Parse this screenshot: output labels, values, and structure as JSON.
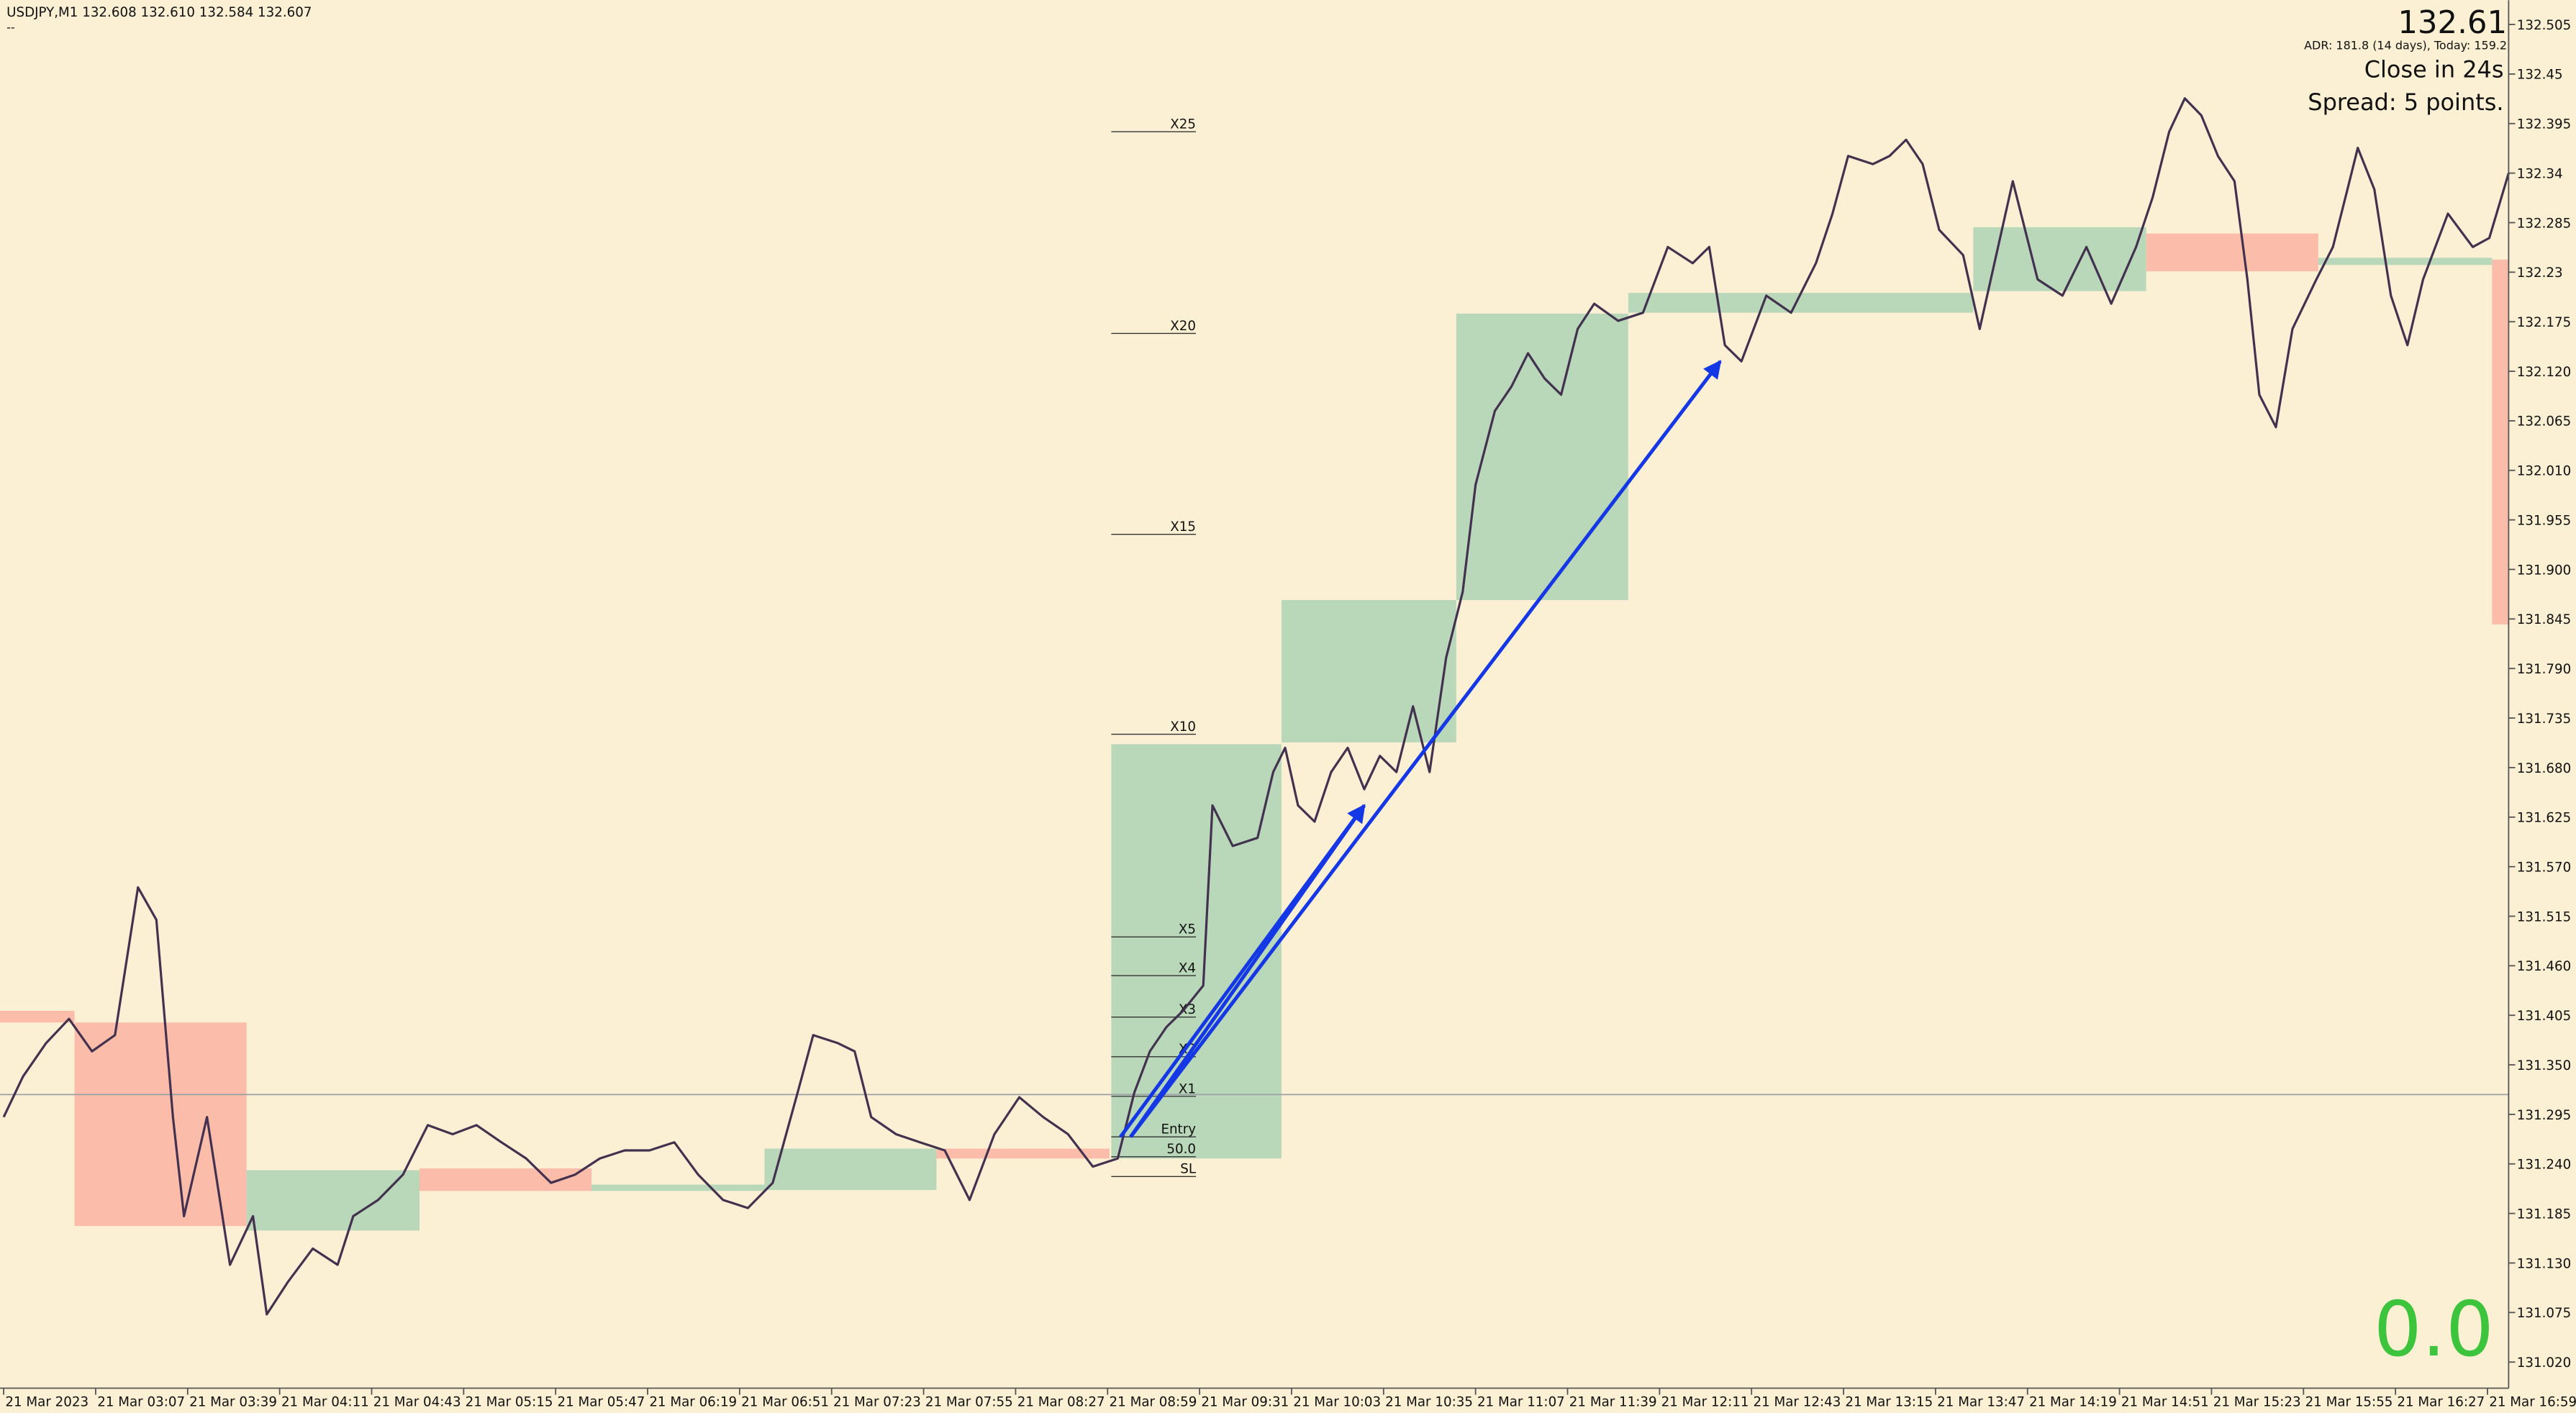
{
  "info": {
    "symbol_line": "USDJPY,M1  132.608 132.610 132.584 132.607",
    "sub_line": "--",
    "price": "132.61",
    "adr": "ADR: 181.8 (14 days), Today: 159.2",
    "close_in": "Close in 24s",
    "spread": "Spread: 5 points.",
    "counter": "0.0"
  },
  "chart_data": {
    "type": "line",
    "xlim": [
      -0.04,
      27.23
    ],
    "ylim": [
      130.991,
      132.532
    ],
    "xticks": [
      {
        "value": 0,
        "label": "21 Mar 2023"
      },
      {
        "value": 1,
        "label": "21 Mar 03:07"
      },
      {
        "value": 2,
        "label": "21 Mar 03:39"
      },
      {
        "value": 3,
        "label": "21 Mar 04:11"
      },
      {
        "value": 4,
        "label": "21 Mar 04:43"
      },
      {
        "value": 5,
        "label": "21 Mar 05:15"
      },
      {
        "value": 6,
        "label": "21 Mar 05:47"
      },
      {
        "value": 7,
        "label": "21 Mar 06:19"
      },
      {
        "value": 8,
        "label": "21 Mar 06:51"
      },
      {
        "value": 9,
        "label": "21 Mar 07:23"
      },
      {
        "value": 10,
        "label": "21 Mar 07:55"
      },
      {
        "value": 11,
        "label": "21 Mar 08:27"
      },
      {
        "value": 12,
        "label": "21 Mar 08:59"
      },
      {
        "value": 13,
        "label": "21 Mar 09:31"
      },
      {
        "value": 14,
        "label": "21 Mar 10:03"
      },
      {
        "value": 15,
        "label": "21 Mar 10:35"
      },
      {
        "value": 16,
        "label": "21 Mar 11:07"
      },
      {
        "value": 17,
        "label": "21 Mar 11:39"
      },
      {
        "value": 18,
        "label": "21 Mar 12:11"
      },
      {
        "value": 19,
        "label": "21 Mar 12:43"
      },
      {
        "value": 20,
        "label": "21 Mar 13:15"
      },
      {
        "value": 21,
        "label": "21 Mar 13:47"
      },
      {
        "value": 22,
        "label": "21 Mar 14:19"
      },
      {
        "value": 23,
        "label": "21 Mar 14:51"
      },
      {
        "value": 24,
        "label": "21 Mar 15:23"
      },
      {
        "value": 25,
        "label": "21 Mar 15:55"
      },
      {
        "value": 26,
        "label": "21 Mar 16:27"
      },
      {
        "value": 27,
        "label": "21 Mar 16:59"
      }
    ],
    "yticks": [
      132.505,
      132.45,
      132.395,
      132.34,
      132.285,
      132.23,
      132.175,
      {
        "value": 132.12,
        "label": "132.120"
      },
      132.065,
      {
        "value": 132.01,
        "label": "132.010"
      },
      131.955,
      {
        "value": 131.9,
        "label": "131.900"
      },
      131.845,
      {
        "value": 131.79,
        "label": "131.790"
      },
      131.735,
      {
        "value": 131.68,
        "label": "131.680"
      },
      131.625,
      {
        "value": 131.57,
        "label": "131.570"
      },
      131.515,
      {
        "value": 131.46,
        "label": "131.460"
      },
      131.405,
      {
        "value": 131.35,
        "label": "131.350"
      },
      131.295,
      {
        "value": 131.24,
        "label": "131.240"
      },
      131.185,
      {
        "value": 131.13,
        "label": "131.130"
      },
      131.075,
      {
        "value": 131.02,
        "label": "131.020"
      }
    ],
    "series": [
      {
        "color": "#43324f",
        "x": [
          0,
          0.21,
          0.46,
          0.71,
          0.96,
          1.21,
          1.46,
          1.66,
          1.84,
          1.96,
          2.21,
          2.46,
          2.71,
          2.86,
          3.09,
          3.36,
          3.63,
          3.8,
          4.07,
          4.34,
          4.61,
          4.88,
          5.14,
          5.41,
          5.68,
          5.95,
          6.21,
          6.48,
          6.75,
          7.02,
          7.29,
          7.55,
          7.82,
          8.09,
          8.36,
          8.63,
          8.8,
          9.07,
          9.25,
          9.43,
          9.7,
          9.96,
          10.23,
          10.5,
          10.77,
          11.04,
          11.3,
          11.57,
          11.84,
          12.11,
          12.29,
          12.46,
          12.64,
          12.82,
          13.04,
          13.14,
          13.36,
          13.63,
          13.8,
          13.93,
          14.07,
          14.25,
          14.43,
          14.61,
          14.79,
          14.96,
          15.14,
          15.32,
          15.5,
          15.68,
          15.86,
          16,
          16.21,
          16.39,
          16.57,
          16.75,
          16.93,
          17.11,
          17.29,
          17.55,
          17.82,
          18.09,
          18.36,
          18.54,
          18.71,
          18.89,
          19.16,
          19.43,
          19.7,
          19.88,
          20.05,
          20.32,
          20.5,
          20.68,
          20.86,
          21.04,
          21.3,
          21.48,
          21.66,
          21.84,
          22.11,
          22.38,
          22.64,
          22.91,
          23.18,
          23.36,
          23.54,
          23.71,
          23.89,
          24.07,
          24.25,
          24.39,
          24.52,
          24.7,
          24.88,
          25.14,
          25.32,
          25.5,
          25.59,
          25.77,
          25.95,
          26.13,
          26.3,
          26.57,
          26.84,
          27.02,
          27.23
        ],
        "values": [
          131.292,
          131.337,
          131.374,
          131.401,
          131.365,
          131.383,
          131.547,
          131.511,
          131.292,
          131.182,
          131.292,
          131.128,
          131.182,
          131.073,
          131.109,
          131.146,
          131.128,
          131.182,
          131.2,
          131.228,
          131.283,
          131.273,
          131.283,
          131.264,
          131.246,
          131.219,
          131.228,
          131.246,
          131.255,
          131.255,
          131.264,
          131.228,
          131.2,
          131.191,
          131.219,
          131.319,
          131.383,
          131.374,
          131.365,
          131.292,
          131.273,
          131.264,
          131.255,
          131.2,
          131.273,
          131.314,
          131.292,
          131.273,
          131.237,
          131.246,
          131.319,
          131.365,
          131.392,
          131.41,
          131.438,
          131.638,
          131.593,
          131.602,
          131.675,
          131.702,
          131.638,
          131.62,
          131.675,
          131.702,
          131.656,
          131.693,
          131.675,
          131.748,
          131.675,
          131.802,
          131.875,
          131.994,
          132.076,
          132.103,
          132.14,
          132.112,
          132.094,
          132.167,
          132.195,
          132.176,
          132.185,
          132.258,
          132.24,
          132.258,
          132.149,
          132.131,
          132.204,
          132.185,
          132.24,
          132.295,
          132.359,
          132.35,
          132.359,
          132.377,
          132.35,
          132.277,
          132.249,
          132.167,
          132.249,
          132.331,
          132.222,
          132.204,
          132.258,
          132.195,
          132.258,
          132.313,
          132.386,
          132.423,
          132.404,
          132.359,
          132.331,
          132.222,
          132.094,
          132.058,
          132.167,
          132.222,
          132.258,
          132.331,
          132.368,
          132.322,
          132.204,
          132.149,
          132.222,
          132.295,
          132.258,
          132.268,
          132.34
        ]
      }
    ],
    "hline": {
      "value": 131.317,
      "color": "#9aa0a6"
    },
    "zones": [
      {
        "x": [
          -0.04,
          0.77
        ],
        "y": [
          131.41,
          131.397
        ],
        "color": "#fbbcaa"
      },
      {
        "x": [
          0.77,
          2.64
        ],
        "y": [
          131.397,
          131.171
        ],
        "color": "#fbbcaa"
      },
      {
        "x": [
          2.64,
          4.52
        ],
        "y": [
          131.233,
          131.166
        ],
        "color": "#b9d7b9"
      },
      {
        "x": [
          4.52,
          6.39
        ],
        "y": [
          131.235,
          131.21
        ],
        "color": "#fbbcaa"
      },
      {
        "x": [
          6.39,
          8.27
        ],
        "y": [
          131.217,
          131.21
        ],
        "color": "#b9d7b9"
      },
      {
        "x": [
          8.27,
          10.14
        ],
        "y": [
          131.257,
          131.211
        ],
        "color": "#b9d7b9"
      },
      {
        "x": [
          10.14,
          12.02
        ],
        "y": [
          131.257,
          131.246
        ],
        "color": "#fbbcaa"
      },
      {
        "x": [
          12.04,
          13.89
        ],
        "y": [
          131.706,
          131.246
        ],
        "color": "#b9d7b9"
      },
      {
        "x": [
          13.89,
          15.79
        ],
        "y": [
          131.866,
          131.708
        ],
        "color": "#b9d7b9"
      },
      {
        "x": [
          15.79,
          17.66
        ],
        "y": [
          132.184,
          131.866
        ],
        "color": "#b9d7b9"
      },
      {
        "x": [
          17.66,
          21.41
        ],
        "y": [
          132.207,
          132.185
        ],
        "color": "#b9d7b9"
      },
      {
        "x": [
          21.41,
          23.29
        ],
        "y": [
          132.28,
          132.209
        ],
        "color": "#b9d7b9"
      },
      {
        "x": [
          23.29,
          25.16
        ],
        "y": [
          132.273,
          132.231
        ],
        "color": "#fbbcaa"
      },
      {
        "x": [
          25.16,
          27.05
        ],
        "y": [
          132.246,
          132.238
        ],
        "color": "#b9d7b9"
      },
      {
        "x": [
          27.05,
          27.23
        ],
        "y": [
          132.244,
          131.839
        ],
        "color": "#fbbcaa"
      }
    ],
    "levels_x": [
      12.04,
      12.96
    ],
    "levels": [
      {
        "label": "X25",
        "value": 132.386
      },
      {
        "label": "X20",
        "value": 132.162
      },
      {
        "label": "X15",
        "value": 131.939
      },
      {
        "label": "X10",
        "value": 131.717
      },
      {
        "label": "X5",
        "value": 131.492
      },
      {
        "label": "X4",
        "value": 131.449
      },
      {
        "label": "X3",
        "value": 131.403
      },
      {
        "label": "X2",
        "value": 131.359
      },
      {
        "label": "X1",
        "value": 131.315
      },
      {
        "label": "Entry",
        "value": 131.27
      },
      {
        "label": "50.0",
        "value": 131.248
      },
      {
        "label": "SL",
        "value": 131.226
      }
    ],
    "arrow_color": "#1538e6",
    "arrows": [
      {
        "from": [
          12.25,
          131.27
        ],
        "to": [
          14.79,
          131.638
        ]
      },
      {
        "from": [
          12.14,
          131.27
        ],
        "to": [
          14.79,
          131.638
        ]
      },
      {
        "from": [
          12.25,
          131.27
        ],
        "to": [
          18.66,
          132.131
        ]
      }
    ]
  }
}
